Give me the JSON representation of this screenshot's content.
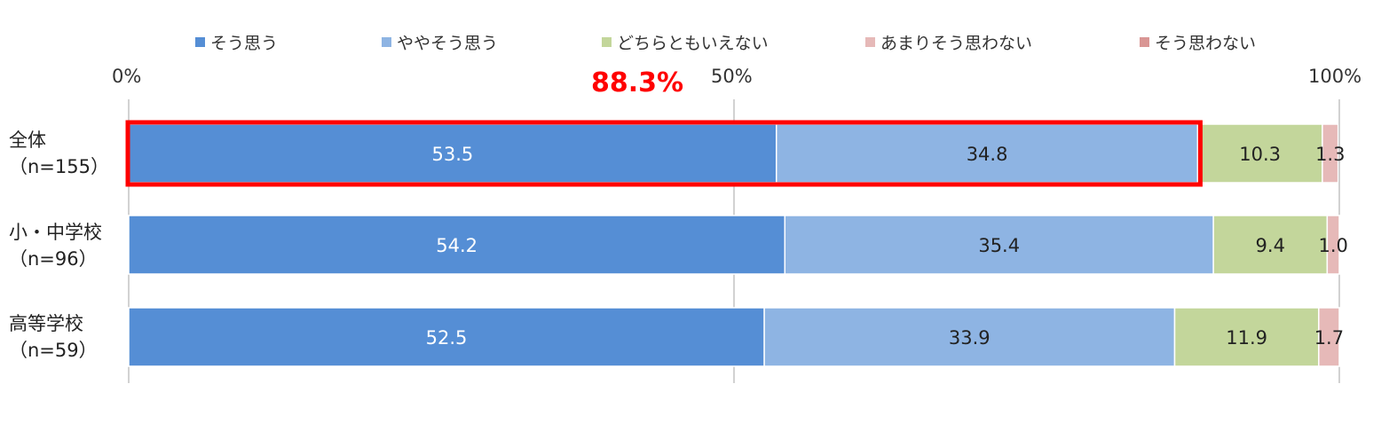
{
  "chart_data": {
    "type": "bar",
    "orientation": "horizontal",
    "stacked": true,
    "percent_axis": true,
    "xlim": [
      0,
      100
    ],
    "x_ticks": [
      "0%",
      "50%",
      "100%"
    ],
    "legend_position": "top",
    "categories": [
      [
        "全体",
        "（n=155）"
      ],
      [
        "小・中学校",
        "（n=96）"
      ],
      [
        "高等学校",
        "（n=59）"
      ]
    ],
    "series": [
      {
        "name": "そう思う",
        "color": "#558ed5",
        "label_color": "#ffffff",
        "values": [
          53.5,
          54.2,
          52.5
        ]
      },
      {
        "name": "ややそう思う",
        "color": "#8eb4e3",
        "label_color": "#222222",
        "values": [
          34.8,
          35.4,
          33.9
        ]
      },
      {
        "name": "どちらともいえない",
        "color": "#c3d69b",
        "label_color": "#222222",
        "values": [
          10.3,
          9.4,
          11.9
        ]
      },
      {
        "name": "あまりそう思わない",
        "color": "#e6b9b8",
        "label_color": "#222222",
        "values": [
          1.3,
          1.0,
          1.7
        ]
      },
      {
        "name": "そう思わない",
        "color": "#d99694",
        "label_color": "#222222",
        "values": [
          0.0,
          0.0,
          0.0
        ]
      }
    ],
    "annotation": {
      "text": "88.3%",
      "color": "#ff0000",
      "category_index": 0,
      "series_span": [
        0,
        1
      ]
    }
  }
}
